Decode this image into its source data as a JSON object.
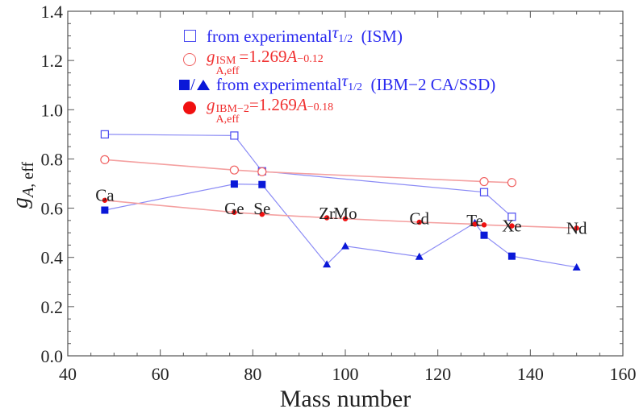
{
  "chart_data": {
    "type": "scatter",
    "xlabel": "Mass number",
    "ylabel": "gA,eff",
    "xlim": [
      40,
      160
    ],
    "ylim": [
      0.0,
      1.4
    ],
    "xticks": [
      "40",
      "60",
      "80",
      "100",
      "120",
      "140",
      "160"
    ],
    "yticks": [
      "0.0",
      "0.2",
      "0.4",
      "0.6",
      "0.8",
      "1.0",
      "1.2",
      "1.4"
    ],
    "grid": false,
    "series": [
      {
        "name": "from experimental τ1/2 (ISM)",
        "marker": "open-square",
        "color": "#4a4af0",
        "x": [
          48,
          76,
          82,
          130,
          136
        ],
        "y": [
          0.9,
          0.895,
          0.75,
          0.665,
          0.565
        ]
      },
      {
        "name": "gA,eff ISM = 1.269A^-0.12",
        "marker": "open-circle",
        "color": "#f06060",
        "x": [
          48,
          76,
          82,
          130,
          136
        ],
        "y": [
          0.797,
          0.755,
          0.748,
          0.708,
          0.704
        ]
      },
      {
        "name": "from experimental τ1/2 (IBM−2 CA/SSD)",
        "marker": "filled-square/triangle",
        "color": "#0a18d8",
        "x": [
          48,
          76,
          82,
          96,
          100,
          116,
          128,
          130,
          136,
          150
        ],
        "y": [
          0.592,
          0.698,
          0.696,
          0.372,
          0.446,
          0.403,
          0.54,
          0.49,
          0.405,
          0.36
        ],
        "markers": [
          "square",
          "square",
          "square",
          "triangle",
          "triangle",
          "triangle",
          "triangle",
          "square",
          "square",
          "triangle"
        ]
      },
      {
        "name": "gA,eff IBM−2 = 1.269A^-0.18",
        "marker": "filled-circle",
        "color": "#f01010",
        "x": [
          48,
          76,
          82,
          96,
          100,
          116,
          128,
          130,
          136,
          150
        ],
        "y": [
          0.632,
          0.583,
          0.575,
          0.561,
          0.557,
          0.543,
          0.535,
          0.532,
          0.528,
          0.519
        ]
      }
    ],
    "annotations": [
      {
        "text": "Ca",
        "x": 48,
        "y": 0.65
      },
      {
        "text": "Ge",
        "x": 76,
        "y": 0.595
      },
      {
        "text": "Se",
        "x": 82,
        "y": 0.595
      },
      {
        "text": "Zr",
        "x": 96,
        "y": 0.575
      },
      {
        "text": "Mo",
        "x": 100,
        "y": 0.575
      },
      {
        "text": "Cd",
        "x": 116,
        "y": 0.555
      },
      {
        "text": "Te",
        "x": 128,
        "y": 0.547
      },
      {
        "text": "Xe",
        "x": 136,
        "y": 0.525
      },
      {
        "text": "Nd",
        "x": 150,
        "y": 0.515
      }
    ]
  },
  "legend": {
    "item1_text": "from experimental ",
    "item1_tau": "τ",
    "item1_tau_sub": "1/2",
    "item1_tail": "(ISM)",
    "item2_g": "g",
    "item2_sup": "ISM",
    "item2_sub": "A,eff",
    "item2_eq": "=1.269",
    "item2_A": "A",
    "item2_exp": "−0.12",
    "item3_slash": "/",
    "item3_text": "from experimental ",
    "item3_tau": "τ",
    "item3_tau_sub": "1/2",
    "item3_tail": "(IBM−2 CA/SSD)",
    "item4_g": "g",
    "item4_sup": "IBM−2",
    "item4_sub": "A,eff",
    "item4_eq": "=1.269",
    "item4_A": "A",
    "item4_exp": "−0.18"
  }
}
